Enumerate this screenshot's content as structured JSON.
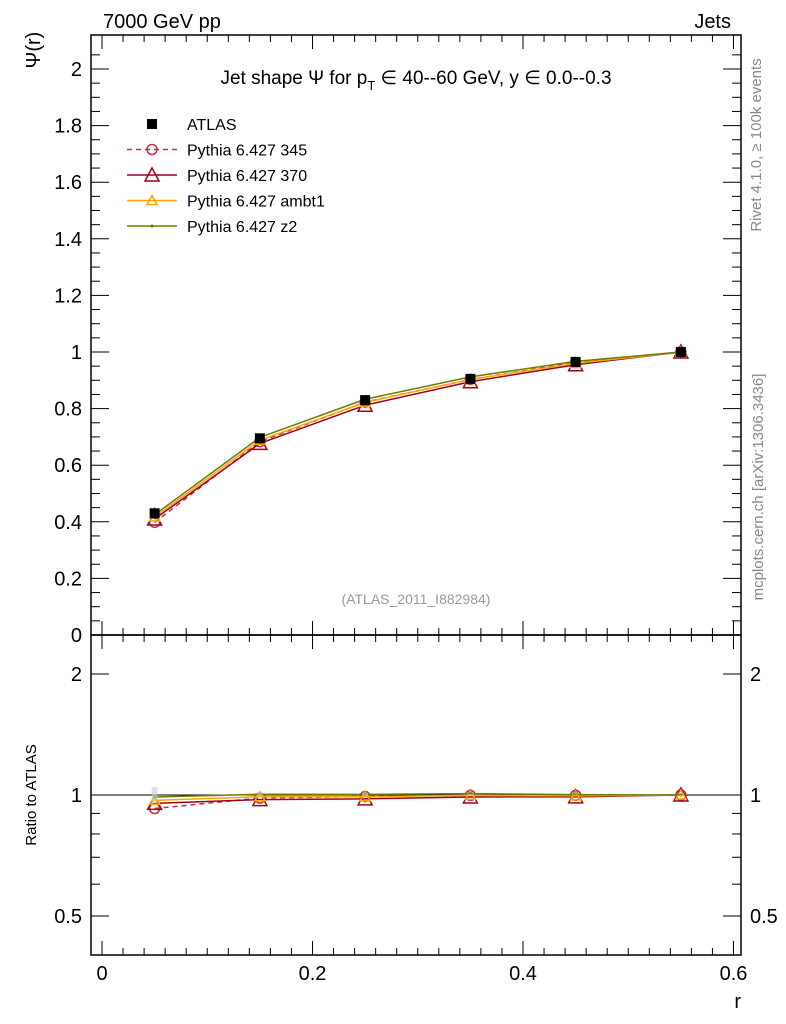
{
  "chart_data": {
    "type": "line",
    "header_left": "7000 GeV pp",
    "header_right": "Jets",
    "title": "Jet shape Ψ for p_T ∈ 40--60 GeV, y ∈ 0.0--0.3",
    "title_parts": {
      "a": "Jet shape Ψ for p",
      "sub": "T",
      "b": " ∈ 40--60 GeV, y ∈ 0.0--0.3"
    },
    "ylabel": "Ψ(r)",
    "ratio_ylabel": "Ratio to ATLAS",
    "xlabel": "r",
    "xlim": [
      -0.005,
      0.605
    ],
    "ylim": [
      0,
      2.12
    ],
    "ratio_ylim": [
      0.4,
      2.3
    ],
    "x_ticks": [
      "0",
      "0.2",
      "0.4",
      "0.6"
    ],
    "x_tick_values": [
      0,
      0.2,
      0.4,
      0.6
    ],
    "y_ticks": [
      "0",
      "0.2",
      "0.4",
      "0.6",
      "0.8",
      "1",
      "1.2",
      "1.4",
      "1.6",
      "1.8",
      "2"
    ],
    "y_tick_values": [
      0,
      0.2,
      0.4,
      0.6,
      0.8,
      1,
      1.2,
      1.4,
      1.6,
      1.8,
      2
    ],
    "ratio_ticks": [
      "0.5",
      "1",
      "2"
    ],
    "ratio_tick_values": [
      0.5,
      1,
      2
    ],
    "side_text_top": "Rivet 4.1.0, ≥ 100k events",
    "side_text_bottom": "mcplots.cern.ch [arXiv:1306.3436]",
    "watermark": "(ATLAS_2011_I882984)",
    "x": [
      0.05,
      0.15,
      0.25,
      0.35,
      0.45,
      0.55
    ],
    "series": [
      {
        "name": "ATLAS",
        "color": "#000000",
        "marker": "square",
        "dash": false,
        "values": [
          0.43,
          0.695,
          0.83,
          0.905,
          0.965,
          1.0
        ],
        "errors": [
          0.02,
          0.01,
          0.008,
          0.006,
          0.004,
          0.0
        ]
      },
      {
        "name": "Pythia 6.427 345",
        "color": "#c0304a",
        "marker": "circle",
        "dash": true,
        "values": [
          0.398,
          0.683,
          0.823,
          0.903,
          0.963,
          1.0
        ]
      },
      {
        "name": "Pythia 6.427 370",
        "color": "#a0001c",
        "marker": "triangle",
        "dash": false,
        "values": [
          0.41,
          0.677,
          0.812,
          0.895,
          0.955,
          1.0
        ]
      },
      {
        "name": "Pythia 6.427 ambt1",
        "color": "#ffa500",
        "marker": "triangle-small",
        "dash": false,
        "values": [
          0.417,
          0.688,
          0.822,
          0.903,
          0.96,
          1.0
        ]
      },
      {
        "name": "Pythia 6.427 z2",
        "color": "#6b7d00",
        "marker": "dot",
        "dash": false,
        "values": [
          0.425,
          0.698,
          0.833,
          0.912,
          0.967,
          1.0
        ]
      }
    ]
  }
}
